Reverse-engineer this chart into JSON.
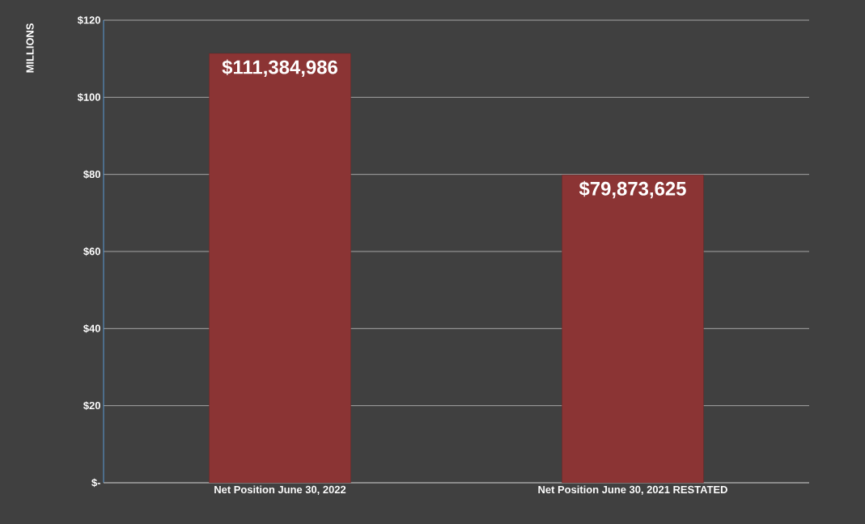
{
  "chart_data": {
    "type": "bar",
    "ylabel": "MILLIONS",
    "categories": [
      "Net Position June 30, 2022",
      "Net Position June 30, 2021 RESTATED"
    ],
    "values": [
      111.384986,
      79.873625
    ],
    "color": "#8b3434",
    "annotations": [
      {
        "text": "$111,384,986",
        "x": "Net Position June 30, 2022",
        "y": 111.384986
      },
      {
        "text": "$79,873,625",
        "x": "Net Position June 30, 2021 RESTATED",
        "y": 79.873625
      }
    ],
    "ylim": [
      0,
      120
    ],
    "yticks": [
      {
        "value": 0,
        "label": "$-"
      },
      {
        "value": 20,
        "label": "$20"
      },
      {
        "value": 40,
        "label": "$40"
      },
      {
        "value": 60,
        "label": "$60"
      },
      {
        "value": 80,
        "label": "$80"
      },
      {
        "value": 100,
        "label": "$100"
      },
      {
        "value": 120,
        "label": "$120"
      }
    ],
    "grid": "y"
  }
}
